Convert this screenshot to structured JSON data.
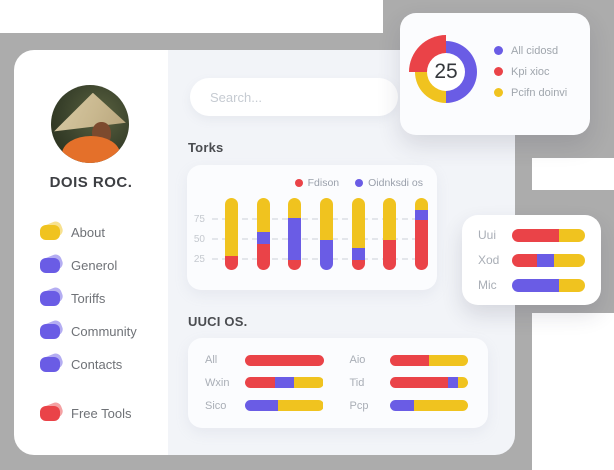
{
  "colors": {
    "red": "#ea4348",
    "purple": "#6a5ce5",
    "yellow": "#f0c31f",
    "gray_bg": "#acacac",
    "panel": "#f2f4f8",
    "card": "#fbfcfe",
    "text_dark": "#3d3f43",
    "text_gray": "#9aa0ab"
  },
  "sidebar": {
    "profile_name": "DOIS ROC.",
    "avatar": "person-wearing-conical-hat-photo",
    "menu": [
      {
        "label": "About",
        "icon_color": "yellow"
      },
      {
        "label": "Generol",
        "icon_color": "purple"
      },
      {
        "label": "Toriffs",
        "icon_color": "purple"
      },
      {
        "label": "Community",
        "icon_color": "purple"
      },
      {
        "label": "Contacts",
        "icon_color": "purple"
      },
      {
        "label": "Free Tools",
        "icon_color": "red",
        "gap_before": true
      }
    ]
  },
  "search": {
    "placeholder": "Search..."
  },
  "sections": {
    "torks_title": "Torks",
    "uuci_title": "UUCI OS."
  },
  "chart_data": [
    {
      "type": "pie",
      "style": "donut",
      "center_value": "25",
      "legend_position": "right",
      "slices": [
        {
          "label": "All cidosd",
          "color": "purple",
          "pct": 50
        },
        {
          "label": "Kpi xioc",
          "color": "red",
          "pct": 25,
          "emphasis": true
        },
        {
          "label": "Pcifn doinvi",
          "color": "yellow",
          "pct": 25
        }
      ],
      "draw_order": [
        "All cidosd",
        "Pcifn doinvi",
        "Kpi xioc"
      ]
    },
    {
      "type": "bar",
      "stacked": true,
      "title": "Torks",
      "legend": [
        {
          "label": "Fdison",
          "color": "red"
        },
        {
          "label": "Oidnksdi os",
          "color": "purple"
        }
      ],
      "grid": "dashed",
      "y_ticks": [
        25,
        50,
        75
      ],
      "value_range": {
        "min": 12,
        "max": 102
      },
      "bars": [
        {
          "segments": [
            {
              "color": "red",
              "value": 18
            },
            {
              "color": "yellow",
              "value": 72
            }
          ]
        },
        {
          "segments": [
            {
              "color": "red",
              "value": 32
            },
            {
              "color": "purple",
              "value": 15
            },
            {
              "color": "yellow",
              "value": 43
            }
          ]
        },
        {
          "segments": [
            {
              "color": "red",
              "value": 13
            },
            {
              "color": "purple",
              "value": 52
            },
            {
              "color": "yellow",
              "value": 25
            }
          ]
        },
        {
          "segments": [
            {
              "color": "purple",
              "value": 38
            },
            {
              "color": "yellow",
              "value": 52
            }
          ]
        },
        {
          "segments": [
            {
              "color": "red",
              "value": 13
            },
            {
              "color": "purple",
              "value": 15
            },
            {
              "color": "yellow",
              "value": 62
            }
          ]
        },
        {
          "segments": [
            {
              "color": "red",
              "value": 38
            },
            {
              "color": "yellow",
              "value": 52
            }
          ]
        },
        {
          "segments": [
            {
              "color": "red",
              "value": 63
            },
            {
              "color": "purple",
              "value": 12
            },
            {
              "color": "yellow",
              "value": 15
            }
          ]
        }
      ]
    },
    {
      "type": "bar",
      "orientation": "horizontal",
      "stacked": true,
      "rows": [
        {
          "label": "Uui",
          "segments": [
            {
              "color": "red",
              "pct": 65
            },
            {
              "color": "yellow",
              "pct": 35
            }
          ]
        },
        {
          "label": "Xod",
          "segments": [
            {
              "color": "red",
              "pct": 34
            },
            {
              "color": "purple",
              "pct": 23
            },
            {
              "color": "yellow",
              "pct": 43
            }
          ]
        },
        {
          "label": "Mic",
          "segments": [
            {
              "color": "purple",
              "pct": 65
            },
            {
              "color": "yellow",
              "pct": 35
            }
          ]
        }
      ]
    },
    {
      "type": "bar",
      "orientation": "horizontal",
      "stacked": true,
      "title": "UUCI OS.",
      "columns": 2,
      "rows": [
        {
          "label": "All",
          "segments": [
            {
              "color": "red",
              "pct": 100
            }
          ]
        },
        {
          "label": "Wxin",
          "segments": [
            {
              "color": "red",
              "pct": 38
            },
            {
              "color": "purple",
              "pct": 25
            },
            {
              "color": "yellow",
              "pct": 37
            }
          ]
        },
        {
          "label": "Sico",
          "segments": [
            {
              "color": "purple",
              "pct": 42
            },
            {
              "color": "yellow",
              "pct": 58
            }
          ]
        },
        {
          "label": "Aio",
          "segments": [
            {
              "color": "red",
              "pct": 50
            },
            {
              "color": "yellow",
              "pct": 50
            }
          ]
        },
        {
          "label": "Tid",
          "segments": [
            {
              "color": "red",
              "pct": 74
            },
            {
              "color": "purple",
              "pct": 13
            },
            {
              "color": "yellow",
              "pct": 13
            }
          ]
        },
        {
          "label": "Pcp",
          "segments": [
            {
              "color": "purple",
              "pct": 31
            },
            {
              "color": "yellow",
              "pct": 69
            }
          ]
        }
      ]
    }
  ]
}
